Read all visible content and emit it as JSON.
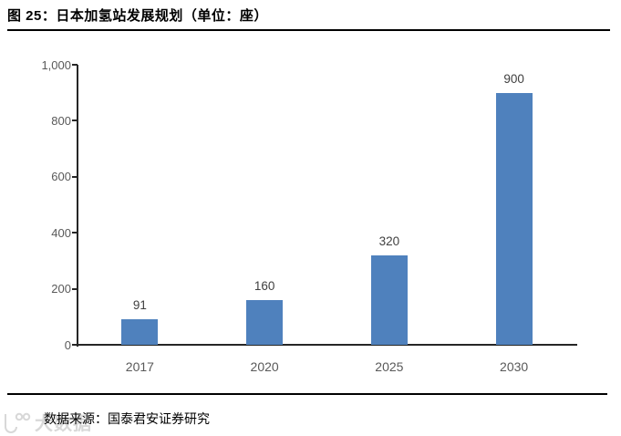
{
  "header": {
    "title": "图 25：日本加氢站发展规划（单位：座）"
  },
  "chart_data": {
    "type": "bar",
    "title": "图 25：日本加氢站发展规划（单位：座）",
    "categories": [
      "2017",
      "2020",
      "2025",
      "2030"
    ],
    "values": [
      91,
      160,
      320,
      900
    ],
    "data_labels": [
      "91",
      "160",
      "320",
      "900"
    ],
    "xlabel": "",
    "ylabel": "",
    "ylim": [
      0,
      1000
    ],
    "yticks": [
      0,
      200,
      400,
      600,
      800,
      1000
    ],
    "ytick_labels": [
      "0",
      "200",
      "400",
      "600",
      "800",
      "1,000"
    ],
    "bar_color": "#4F81BD",
    "grid": false,
    "legend": false,
    "unit": "座"
  },
  "footer": {
    "source": "数据来源：国泰君安证券研究"
  },
  "watermark": {
    "text": "大数据"
  },
  "colors": {
    "bar": "#4F81BD",
    "axis": "#262626",
    "tick_label": "#595959",
    "data_label": "#404040",
    "rule": "#000000",
    "watermark": "#d8d8d8"
  }
}
